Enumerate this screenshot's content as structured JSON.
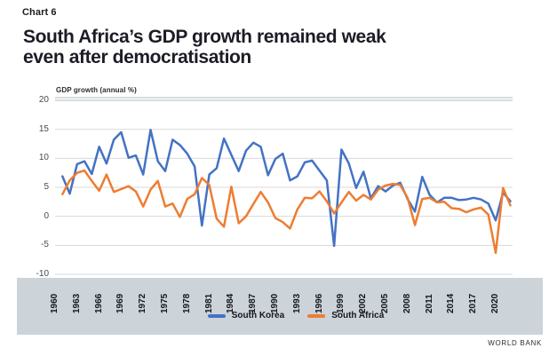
{
  "header": {
    "kicker": "Chart 6",
    "title_line1": "South Africa’s GDP growth remained weak",
    "title_line2": "even after democratisation"
  },
  "source": "WORLD BANK",
  "colors": {
    "south_korea_line": "#4472c4",
    "south_africa_line": "#ed7d31",
    "band_background": "#ccd3d9",
    "gridline": "#d9d9d9",
    "top_rule": "#bfc6cc",
    "title_text": "#1c1c26",
    "axis_text": "#4a4a4a"
  },
  "chart_data": {
    "type": "line",
    "title": "South Africa’s GDP growth remained weak even after democratisation",
    "ylabel": "GDP growth (annual %)",
    "xlabel": "",
    "ylim": [
      -10,
      20
    ],
    "y_ticks": [
      20,
      15,
      10,
      5,
      0,
      -5,
      -10
    ],
    "x_range": [
      1960,
      2022
    ],
    "x_tick_years": [
      1960,
      1963,
      1966,
      1969,
      1972,
      1975,
      1978,
      1981,
      1984,
      1987,
      1990,
      1993,
      1996,
      1999,
      2002,
      2005,
      2008,
      2011,
      2014,
      2017,
      2020
    ],
    "grid": true,
    "legend_position": "bottom",
    "x": [
      1961,
      1962,
      1963,
      1964,
      1965,
      1966,
      1967,
      1968,
      1969,
      1970,
      1971,
      1972,
      1973,
      1974,
      1975,
      1976,
      1977,
      1978,
      1979,
      1980,
      1981,
      1982,
      1983,
      1984,
      1985,
      1986,
      1987,
      1988,
      1989,
      1990,
      1991,
      1992,
      1993,
      1994,
      1995,
      1996,
      1997,
      1998,
      1999,
      2000,
      2001,
      2002,
      2003,
      2004,
      2005,
      2006,
      2007,
      2008,
      2009,
      2010,
      2011,
      2012,
      2013,
      2014,
      2015,
      2016,
      2017,
      2018,
      2019,
      2020,
      2021,
      2022
    ],
    "series": [
      {
        "name": "South Korea",
        "color": "#4472c4",
        "values": [
          6.9,
          3.9,
          9.0,
          9.5,
          7.3,
          12.0,
          9.1,
          13.2,
          14.5,
          10.1,
          10.5,
          7.2,
          14.9,
          9.5,
          7.8,
          13.2,
          12.3,
          10.8,
          8.6,
          -1.6,
          7.2,
          8.3,
          13.4,
          10.6,
          7.8,
          11.3,
          12.7,
          12.0,
          7.1,
          9.9,
          10.8,
          6.2,
          6.9,
          9.3,
          9.6,
          7.9,
          6.2,
          -5.1,
          11.5,
          9.1,
          4.9,
          7.7,
          3.1,
          5.2,
          4.3,
          5.3,
          5.8,
          3.0,
          0.8,
          6.8,
          3.7,
          2.4,
          3.2,
          3.2,
          2.8,
          2.9,
          3.2,
          2.9,
          2.2,
          -0.7,
          4.1,
          2.6
        ]
      },
      {
        "name": "South Africa",
        "color": "#ed7d31",
        "values": [
          3.8,
          6.2,
          7.5,
          7.9,
          6.1,
          4.4,
          7.2,
          4.2,
          4.7,
          5.2,
          4.3,
          1.7,
          4.6,
          6.1,
          1.7,
          2.2,
          -0.1,
          3.0,
          3.8,
          6.6,
          5.4,
          -0.4,
          -1.8,
          5.1,
          -1.2,
          0.0,
          2.1,
          4.2,
          2.4,
          -0.3,
          -1.0,
          -2.1,
          1.2,
          3.2,
          3.1,
          4.3,
          2.6,
          0.5,
          2.4,
          4.2,
          2.7,
          3.7,
          2.9,
          4.6,
          5.3,
          5.6,
          5.4,
          3.2,
          -1.5,
          3.0,
          3.2,
          2.4,
          2.5,
          1.4,
          1.3,
          0.7,
          1.2,
          1.5,
          0.3,
          -6.3,
          4.9,
          1.9
        ]
      }
    ]
  }
}
